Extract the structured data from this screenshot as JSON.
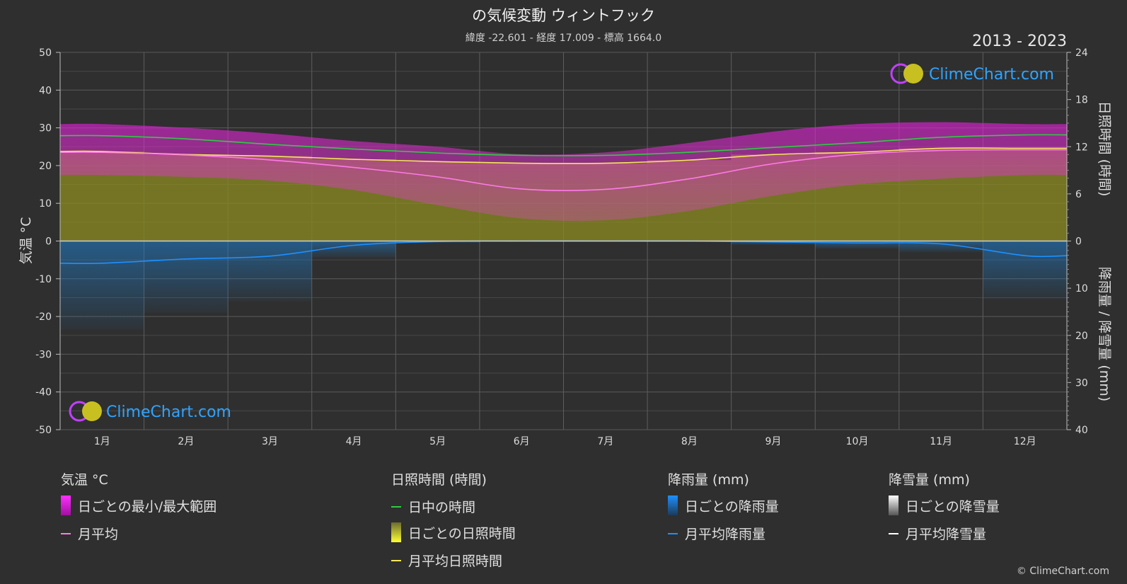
{
  "header": {
    "title": "の気候変動 ウィントフック",
    "subtitle": "緯度 -22.601 - 経度 17.009 - 標高 1664.0",
    "years": "2013 - 2023"
  },
  "watermark": {
    "text": "ClimeChart.com"
  },
  "copyright": "© ClimeChart.com",
  "colors": {
    "background": "#2f2f2f",
    "temp_range": "#d020c8",
    "temp_avg": "#ff7ae8",
    "daylight": "#2ecc40",
    "sunshine": "#b8b820",
    "sunshine_avg": "#f5e85a",
    "rain": "#1e90ff",
    "snow": "#ffffff"
  },
  "chart_data": {
    "type": "line",
    "title": "の気候変動 ウィントフック",
    "categories": [
      "1月",
      "2月",
      "3月",
      "4月",
      "5月",
      "6月",
      "7月",
      "8月",
      "9月",
      "10月",
      "11月",
      "12月"
    ],
    "y_left": {
      "label": "気温 °C",
      "range": [
        -50,
        50
      ],
      "ticks": [
        50,
        40,
        30,
        20,
        10,
        0,
        -10,
        -20,
        -30,
        -40,
        -50
      ]
    },
    "y_right_top": {
      "label": "日照時間 (時間)",
      "range": [
        0,
        24
      ],
      "ticks": [
        24,
        18,
        12,
        6,
        0
      ]
    },
    "y_right_bottom": {
      "label": "降雨量 / 降雪量 (mm)",
      "range": [
        0,
        40
      ],
      "ticks": [
        10,
        20,
        30,
        40
      ]
    },
    "grid": true,
    "series": [
      {
        "name": "日中の時間",
        "axis": "sun",
        "values": [
          13.4,
          13.0,
          12.3,
          11.7,
          11.2,
          10.9,
          10.9,
          11.3,
          11.9,
          12.5,
          13.2,
          13.5
        ]
      },
      {
        "name": "月平均日照時間",
        "axis": "sun",
        "values": [
          11.4,
          11.0,
          10.8,
          10.4,
          10.1,
          9.9,
          9.9,
          10.3,
          11.0,
          11.3,
          11.8,
          11.8
        ]
      },
      {
        "name": "月平均",
        "axis": "temp",
        "values": [
          23.5,
          22.8,
          21.5,
          19.5,
          17.0,
          13.8,
          13.7,
          16.5,
          20.5,
          23.0,
          24.0,
          24.2
        ]
      },
      {
        "name": "月平均降雨量",
        "axis": "rain",
        "values": [
          4.7,
          3.8,
          3.2,
          0.9,
          0.1,
          0.0,
          0.0,
          0.0,
          0.2,
          0.4,
          0.6,
          3.1
        ]
      }
    ],
    "daily_temperature_range": {
      "min": [
        17.5,
        17.0,
        16.0,
        13.5,
        9.5,
        6.0,
        5.5,
        8.0,
        12.0,
        15.0,
        16.5,
        17.5
      ],
      "max": [
        31.0,
        30.0,
        28.5,
        26.5,
        25.0,
        23.0,
        23.5,
        26.0,
        29.0,
        31.0,
        31.5,
        31.0
      ]
    },
    "legend": [
      {
        "header": "気温 °C",
        "items": [
          "日ごとの最小/最大範囲",
          "月平均"
        ]
      },
      {
        "header": "日照時間 (時間)",
        "items": [
          "日中の時間",
          "日ごとの日照時間",
          "月平均日照時間"
        ]
      },
      {
        "header": "降雨量 (mm)",
        "items": [
          "日ごとの降雨量",
          "月平均降雨量"
        ]
      },
      {
        "header": "降雪量 (mm)",
        "items": [
          "日ごとの降雪量",
          "月平均降雪量"
        ]
      }
    ]
  }
}
